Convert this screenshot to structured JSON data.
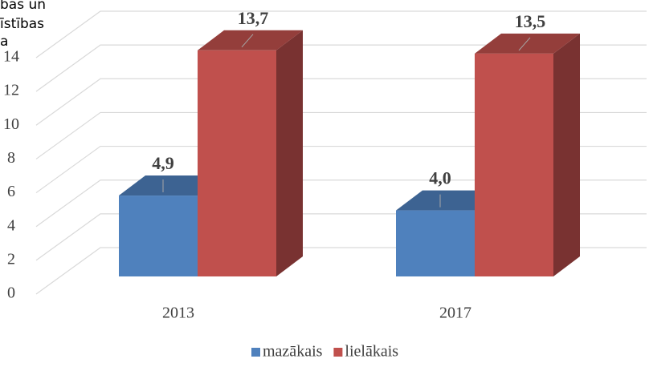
{
  "chart_data": {
    "type": "bar3d",
    "title": [
      "bas un",
      "īstības",
      "a"
    ],
    "categories": [
      "2013",
      "2017"
    ],
    "series": [
      {
        "name": "mazākais",
        "color": "#4f81bd",
        "values": [
          4.9,
          4.0
        ],
        "value_labels": [
          "4,9",
          "4,0"
        ]
      },
      {
        "name": "lielākais",
        "color": "#c0504d",
        "values": [
          13.7,
          13.5
        ],
        "value_labels": [
          "13,7",
          "13,5"
        ]
      }
    ],
    "ylim": [
      0,
      14
    ],
    "yticks": [
      0,
      2,
      4,
      6,
      8,
      10,
      12,
      14
    ],
    "grid": true,
    "legend": "bottom"
  }
}
